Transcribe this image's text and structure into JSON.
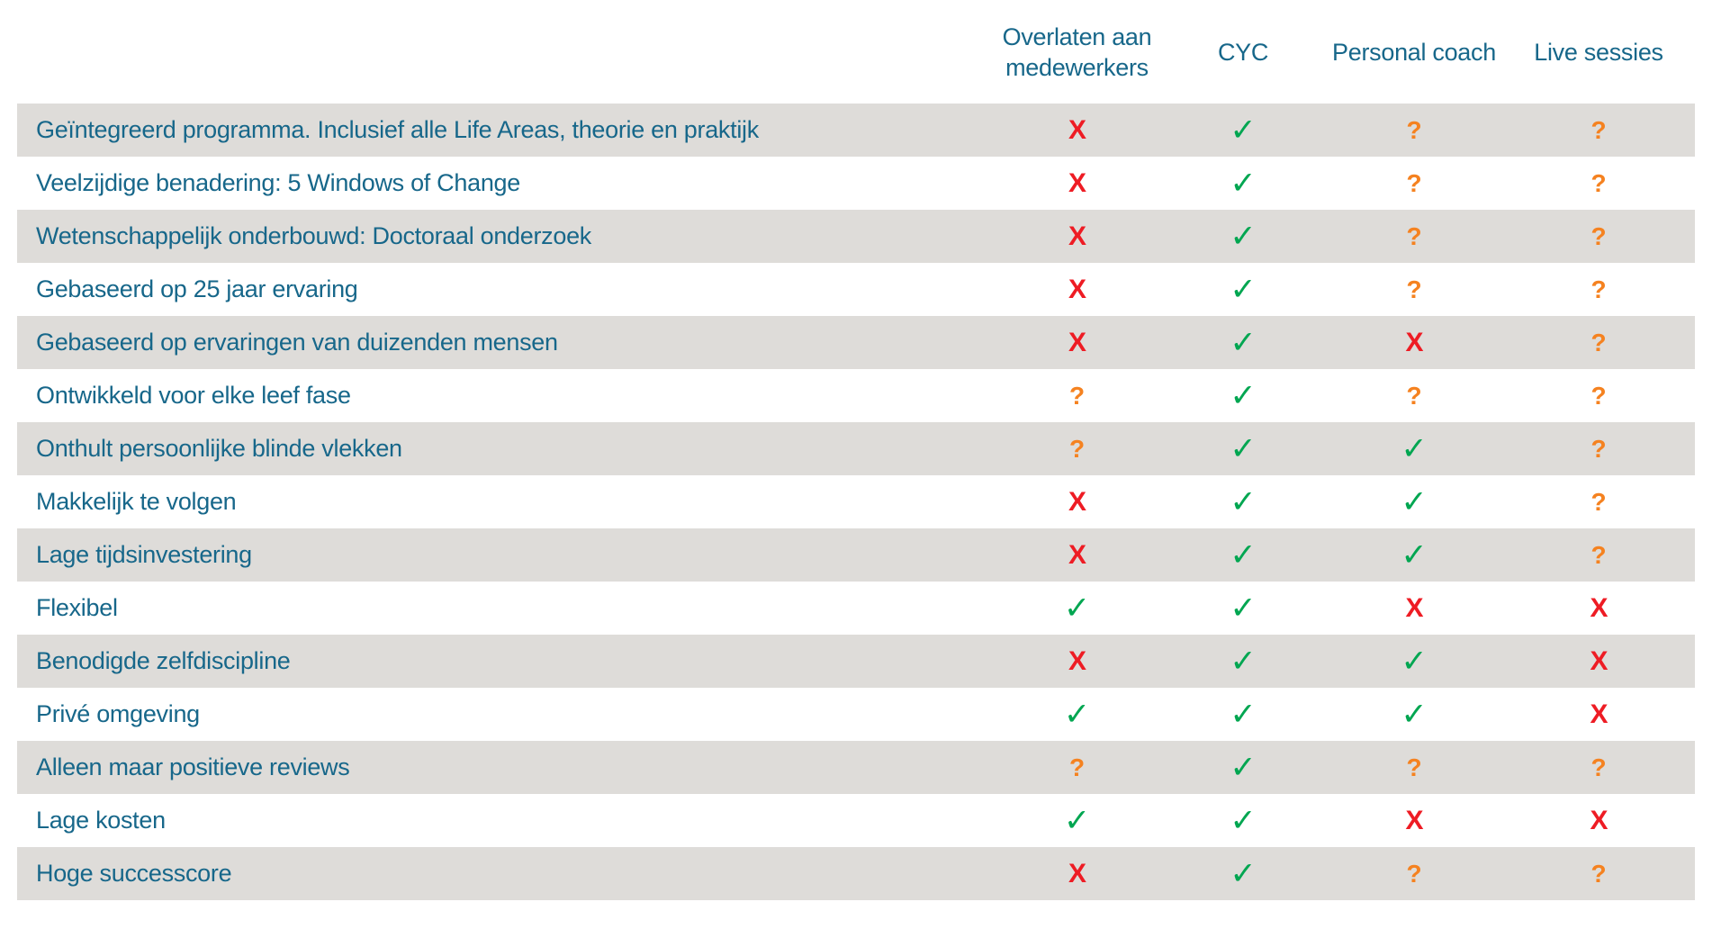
{
  "columns": [
    "Overlaten aan medewerkers",
    "CYC",
    "Personal coach",
    "Live sessies"
  ],
  "mark_glyphs": {
    "cross": "X",
    "check": "✓",
    "question": "?"
  },
  "colors": {
    "teal": "#17678a",
    "stripe": "#dedcd9",
    "red": "#ee1c24",
    "green": "#00a651",
    "orange": "#f58220",
    "bg": "#ffffff"
  },
  "rows": [
    {
      "label": "Geïntegreerd programma. Inclusief alle Life Areas, theorie en praktijk",
      "marks": [
        "cross",
        "check",
        "question",
        "question"
      ]
    },
    {
      "label": "Veelzijdige benadering: 5 Windows of Change",
      "marks": [
        "cross",
        "check",
        "question",
        "question"
      ]
    },
    {
      "label": "Wetenschappelijk onderbouwd: Doctoraal onderzoek",
      "marks": [
        "cross",
        "check",
        "question",
        "question"
      ]
    },
    {
      "label": "Gebaseerd op 25 jaar ervaring",
      "marks": [
        "cross",
        "check",
        "question",
        "question"
      ]
    },
    {
      "label": "Gebaseerd op ervaringen van duizenden mensen",
      "marks": [
        "cross",
        "check",
        "cross",
        "question"
      ]
    },
    {
      "label": "Ontwikkeld voor elke leef fase",
      "marks": [
        "question",
        "check",
        "question",
        "question"
      ]
    },
    {
      "label": "Onthult persoonlijke blinde vlekken",
      "marks": [
        "question",
        "check",
        "check",
        "question"
      ]
    },
    {
      "label": "Makkelijk te volgen",
      "marks": [
        "cross",
        "check",
        "check",
        "question"
      ]
    },
    {
      "label": "Lage tijdsinvestering",
      "marks": [
        "cross",
        "check",
        "check",
        "question"
      ]
    },
    {
      "label": "Flexibel",
      "marks": [
        "check",
        "check",
        "cross",
        "cross"
      ]
    },
    {
      "label": "Benodigde zelfdiscipline",
      "marks": [
        "cross",
        "check",
        "check",
        "cross"
      ]
    },
    {
      "label": "Privé omgeving",
      "marks": [
        "check",
        "check",
        "check",
        "cross"
      ]
    },
    {
      "label": "Alleen maar positieve reviews",
      "marks": [
        "question",
        "check",
        "question",
        "question"
      ]
    },
    {
      "label": "Lage kosten",
      "marks": [
        "check",
        "check",
        "cross",
        "cross"
      ]
    },
    {
      "label": "Hoge successcore",
      "marks": [
        "cross",
        "check",
        "question",
        "question"
      ]
    }
  ]
}
